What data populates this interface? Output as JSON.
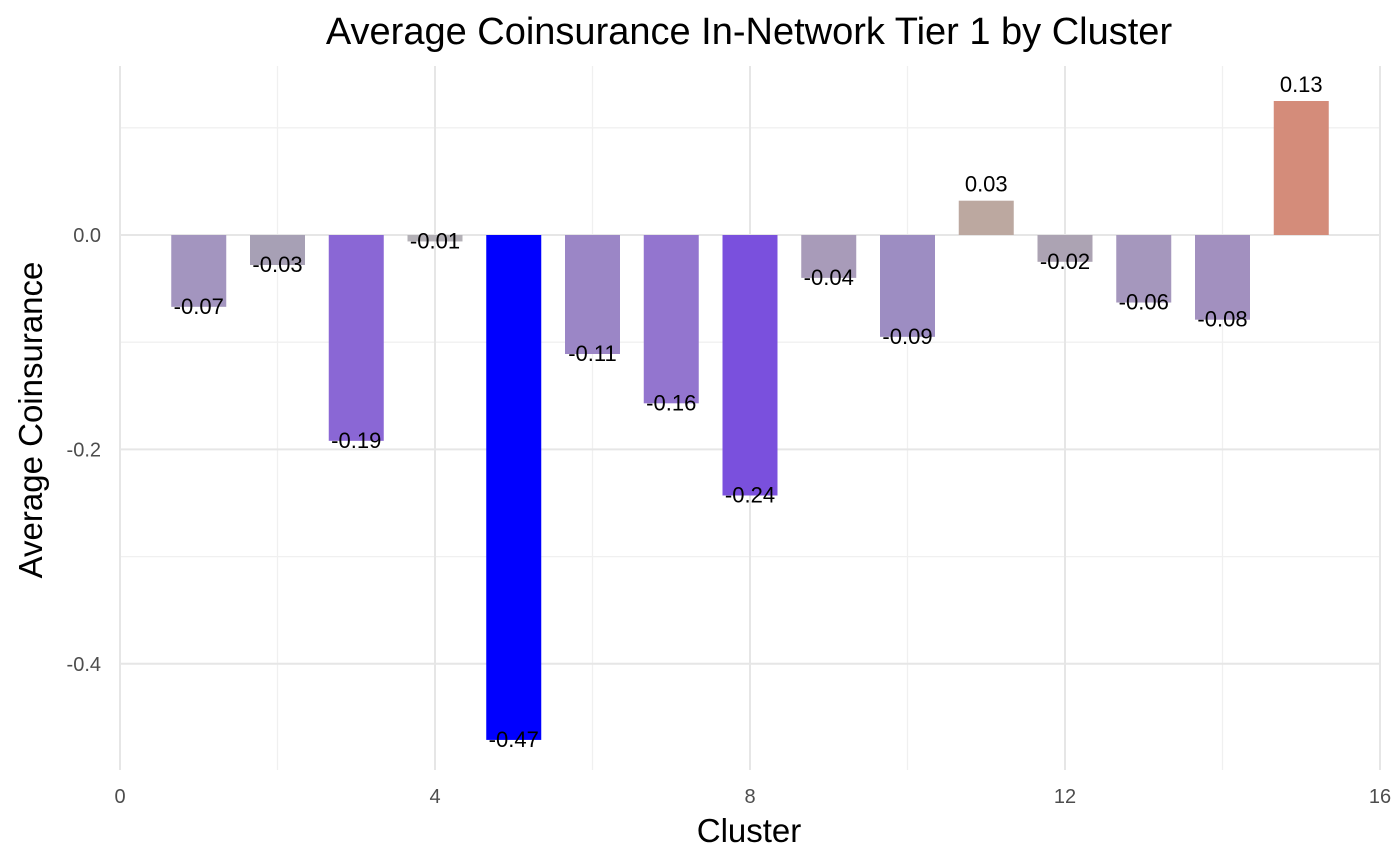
{
  "chart_data": {
    "type": "bar",
    "title": "Average Coinsurance In-Network Tier 1 by Cluster",
    "xlabel": "Cluster",
    "ylabel": "Average Coinsurance",
    "xlim": [
      0,
      16
    ],
    "ylim": [
      -0.5,
      0.155
    ],
    "x_ticks": [
      0,
      4,
      8,
      12,
      16
    ],
    "y_ticks": [
      0.0,
      -0.2,
      -0.4
    ],
    "y_tick_labels": [
      "0.0",
      "-0.2",
      "-0.4"
    ],
    "grid": true,
    "legend": "none",
    "x": [
      1,
      2,
      3,
      4,
      5,
      6,
      7,
      8,
      9,
      10,
      11,
      12,
      13,
      14,
      15
    ],
    "values": [
      -0.067,
      -0.028,
      -0.192,
      -0.006,
      -0.471,
      -0.111,
      -0.157,
      -0.243,
      -0.04,
      -0.095,
      0.032,
      -0.025,
      -0.063,
      -0.079,
      0.125
    ],
    "labels": [
      "-0.07",
      "-0.03",
      "-0.19",
      "-0.01",
      "-0.47",
      "-0.11",
      "-0.16",
      "-0.24",
      "-0.04",
      "-0.09",
      "0.03",
      "-0.02",
      "-0.06",
      "-0.08",
      "0.13"
    ],
    "colors": [
      "#a395bf",
      "#a7a0b5",
      "#8a67d5",
      "#b3b0b6",
      "#0000ff",
      "#9b86c6",
      "#9375cf",
      "#7a50dd",
      "#a89bb9",
      "#9d8dc2",
      "#bca8a0",
      "#aca3b3",
      "#a597bd",
      "#a290bf",
      "#d48c7a"
    ]
  }
}
